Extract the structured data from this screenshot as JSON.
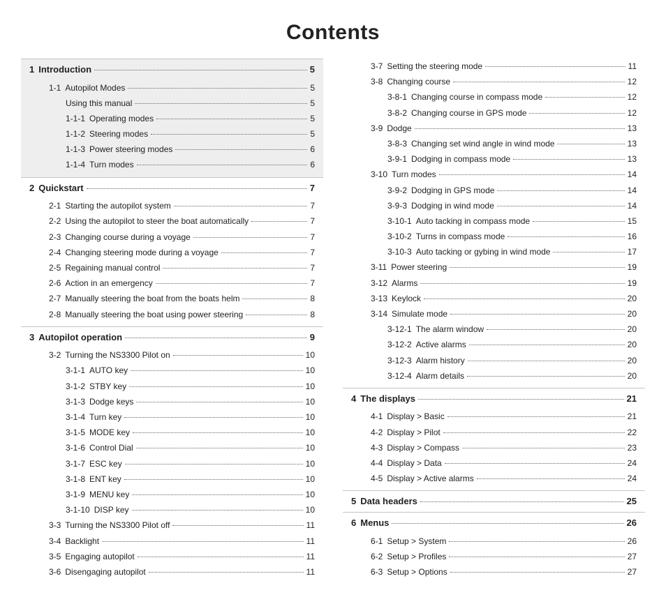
{
  "title": "Contents",
  "columns": [
    {
      "sections": [
        {
          "shaded": true,
          "number": "1",
          "title": "Introduction",
          "page": "5",
          "rows": [
            {
              "indent": 1,
              "num": "1-1",
              "label": "Autopilot Modes",
              "page": "5"
            },
            {
              "indent": 2,
              "num": "",
              "label": "Using this manual",
              "page": "5"
            },
            {
              "indent": 2,
              "num": "1-1-1",
              "label": "Operating modes",
              "page": "5"
            },
            {
              "indent": 2,
              "num": "1-1-2",
              "label": "Steering modes",
              "page": "5"
            },
            {
              "indent": 2,
              "num": "1-1-3",
              "label": "Power steering modes",
              "page": "6"
            },
            {
              "indent": 2,
              "num": "1-1-4",
              "label": "Turn modes",
              "page": "6"
            }
          ]
        },
        {
          "shaded": false,
          "number": "2",
          "title": "Quickstart",
          "page": "7",
          "rows": [
            {
              "indent": 1,
              "num": "2-1",
              "label": "Starting the autopilot system",
              "page": "7"
            },
            {
              "indent": 1,
              "num": "2-2",
              "label": "Using the autopilot to steer the boat automatically",
              "page": "7"
            },
            {
              "indent": 1,
              "num": "2-3",
              "label": "Changing course during a voyage",
              "page": "7"
            },
            {
              "indent": 1,
              "num": "2-4",
              "label": "Changing steering mode during a voyage",
              "page": "7"
            },
            {
              "indent": 1,
              "num": "2-5",
              "label": "Regaining manual control",
              "page": "7"
            },
            {
              "indent": 1,
              "num": "2-6",
              "label": "Action in an emergency",
              "page": "7"
            },
            {
              "indent": 1,
              "num": "2-7",
              "label": "Manually steering the boat from the boats helm",
              "page": "8"
            },
            {
              "indent": 1,
              "num": "2-8",
              "label": "Manually steering the boat using power steering",
              "page": "8"
            }
          ]
        },
        {
          "shaded": false,
          "number": "3",
          "title": "Autopilot operation",
          "page": "9",
          "noBottomBorder": true,
          "rows": [
            {
              "indent": 1,
              "num": "3-2",
              "label": "Turning the NS3300 Pilot on",
              "page": "10"
            },
            {
              "indent": 2,
              "num": "3-1-1",
              "label": "AUTO key",
              "page": "10"
            },
            {
              "indent": 2,
              "num": "3-1-2",
              "label": "STBY key",
              "page": "10"
            },
            {
              "indent": 2,
              "num": "3-1-3",
              "label": "Dodge keys",
              "page": "10"
            },
            {
              "indent": 2,
              "num": "3-1-4",
              "label": "Turn key",
              "page": "10"
            },
            {
              "indent": 2,
              "num": "3-1-5",
              "label": "MODE key",
              "page": "10"
            },
            {
              "indent": 2,
              "num": "3-1-6",
              "label": "Control Dial",
              "page": "10"
            },
            {
              "indent": 2,
              "num": "3-1-7",
              "label": "ESC key",
              "page": "10"
            },
            {
              "indent": 2,
              "num": "3-1-8",
              "label": "ENT key",
              "page": "10"
            },
            {
              "indent": 2,
              "num": "3-1-9",
              "label": "MENU key",
              "page": "10"
            },
            {
              "indent": 2,
              "num": "3-1-10",
              "label": "DISP key",
              "page": "10"
            },
            {
              "indent": 1,
              "num": "3-3",
              "label": "Turning the NS3300 Pilot off",
              "page": "11"
            },
            {
              "indent": 1,
              "num": "3-4",
              "label": "Backlight",
              "page": "11"
            },
            {
              "indent": 1,
              "num": "3-5",
              "label": "Engaging autopilot",
              "page": "11"
            },
            {
              "indent": 1,
              "num": "3-6",
              "label": "Disengaging autopilot",
              "page": "11"
            }
          ]
        }
      ]
    },
    {
      "sections": [
        {
          "shaded": false,
          "noHeader": true,
          "noTopBorder": true,
          "rows": [
            {
              "indent": 1,
              "num": "3-7",
              "label": "Setting the steering mode",
              "page": "11"
            },
            {
              "indent": 1,
              "num": "3-8",
              "label": "Changing course",
              "page": "12"
            },
            {
              "indent": 2,
              "num": "3-8-1",
              "label": "Changing course in compass mode",
              "page": "12"
            },
            {
              "indent": 2,
              "num": "3-8-2",
              "label": "Changing course in GPS mode",
              "page": "12"
            },
            {
              "indent": 1,
              "num": "3-9",
              "label": "Dodge",
              "page": "13"
            },
            {
              "indent": 2,
              "num": "3-8-3",
              "label": "Changing set wind angle in wind mode",
              "page": "13"
            },
            {
              "indent": 2,
              "num": "3-9-1",
              "label": "Dodging in compass mode",
              "page": "13"
            },
            {
              "indent": 1,
              "num": "3-10",
              "label": "Turn modes",
              "page": "14"
            },
            {
              "indent": 2,
              "num": "3-9-2",
              "label": "Dodging in GPS mode",
              "page": "14"
            },
            {
              "indent": 2,
              "num": "3-9-3",
              "label": "Dodging in wind mode",
              "page": "14"
            },
            {
              "indent": 2,
              "num": "3-10-1",
              "label": "Auto tacking in compass mode",
              "page": "15"
            },
            {
              "indent": 2,
              "num": "3-10-2",
              "label": "Turns in compass mode",
              "page": "16"
            },
            {
              "indent": 2,
              "num": "3-10-3",
              "label": "Auto tacking or gybing in wind mode",
              "page": "17"
            },
            {
              "indent": 1,
              "num": "3-11",
              "label": "Power steering",
              "page": "19"
            },
            {
              "indent": 1,
              "num": "3-12",
              "label": "Alarms",
              "page": "19"
            },
            {
              "indent": 1,
              "num": "3-13",
              "label": "Keylock",
              "page": "20"
            },
            {
              "indent": 1,
              "num": "3-14",
              "label": "Simulate mode",
              "page": "20"
            },
            {
              "indent": 2,
              "num": "3-12-1",
              "label": "The alarm window",
              "page": "20"
            },
            {
              "indent": 2,
              "num": "3-12-2",
              "label": "Active alarms",
              "page": "20"
            },
            {
              "indent": 2,
              "num": "3-12-3",
              "label": "Alarm history",
              "page": "20"
            },
            {
              "indent": 2,
              "num": "3-12-4",
              "label": "Alarm details",
              "page": "20"
            }
          ]
        },
        {
          "shaded": false,
          "number": "4",
          "title": "The displays",
          "page": "21",
          "rows": [
            {
              "indent": 1,
              "num": "4-1",
              "label": "Display > Basic",
              "page": "21"
            },
            {
              "indent": 1,
              "num": "4-2",
              "label": "Display > Pilot",
              "page": "22"
            },
            {
              "indent": 1,
              "num": "4-3",
              "label": "Display > Compass",
              "page": "23"
            },
            {
              "indent": 1,
              "num": "4-4",
              "label": "Display > Data",
              "page": "24"
            },
            {
              "indent": 1,
              "num": "4-5",
              "label": "Display > Active alarms",
              "page": "24"
            }
          ]
        },
        {
          "shaded": false,
          "number": "5",
          "title": "Data headers",
          "page": "25",
          "rows": []
        },
        {
          "shaded": false,
          "number": "6",
          "title": "Menus",
          "page": "26",
          "noBottomBorder": true,
          "rows": [
            {
              "indent": 1,
              "num": "6-1",
              "label": "Setup > System",
              "page": "26"
            },
            {
              "indent": 1,
              "num": "6-2",
              "label": "Setup > Profiles",
              "page": "27"
            },
            {
              "indent": 1,
              "num": "6-3",
              "label": "Setup > Options",
              "page": "27"
            }
          ]
        }
      ]
    }
  ]
}
